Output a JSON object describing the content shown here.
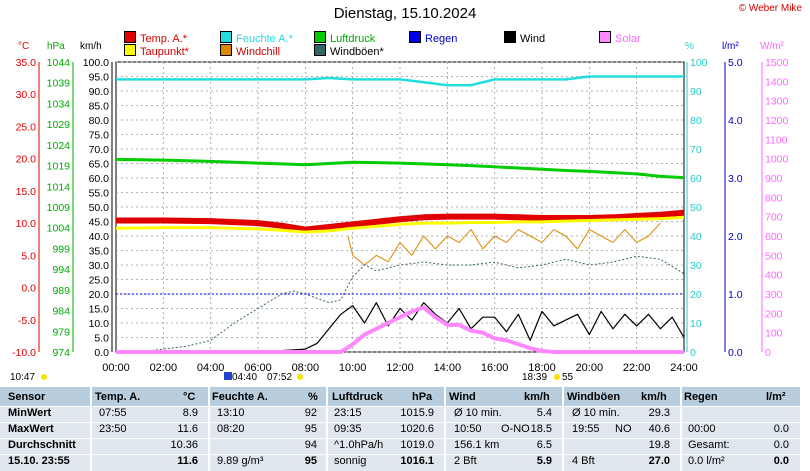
{
  "title": "Dienstag, 15.10.2024",
  "credit": "© Weber Mike",
  "legend": [
    {
      "label": "Temp. A.*",
      "color": "#e00000",
      "text_color": "#e00000"
    },
    {
      "label": "Feuchte A.*",
      "color": "#22dddd",
      "text_color": "#22dddd"
    },
    {
      "label": "Luftdruck",
      "color": "#00cc00",
      "text_color": "#00aa00"
    },
    {
      "label": "Regen",
      "color": "#0000ee",
      "text_color": "#0000cc"
    },
    {
      "label": "Wind",
      "color": "#000000",
      "text_color": "#000000"
    },
    {
      "label": "Solar",
      "color": "#ff88ff",
      "text_color": "#ff66ff"
    },
    {
      "label": "Taupunkt*",
      "color": "#ffff00",
      "text_color": "#cc0000"
    },
    {
      "label": "Windchill",
      "color": "#dd8800",
      "text_color": "#cc0000"
    },
    {
      "label": "Windböen*",
      "color": "#336666",
      "text_color": "#000000"
    }
  ],
  "axis_units": {
    "temp": "°C",
    "hpa": "hPa",
    "kmh": "km/h",
    "pct": "%",
    "rain": "l/m²",
    "solar": "W/m²"
  },
  "chart_data": {
    "type": "line",
    "x_ticks": [
      "00:00",
      "02:00",
      "04:00",
      "06:00",
      "08:00",
      "10:00",
      "12:00",
      "14:00",
      "16:00",
      "18:00",
      "20:00",
      "22:00",
      "24:00"
    ],
    "axes": {
      "temp": {
        "range": [
          -10,
          35
        ],
        "ticks": [
          "35.0",
          "30.0",
          "25.0",
          "20.0",
          "15.0",
          "10.0",
          "5.0",
          "0.0",
          "-5.0",
          "-10.0"
        ]
      },
      "pressure": {
        "range": [
          974,
          1044
        ],
        "ticks": [
          "1044",
          "1039",
          "1034",
          "1029",
          "1024",
          "1019",
          "1014",
          "1009",
          "1004",
          "999",
          "994",
          "989",
          "984",
          "979",
          "974"
        ]
      },
      "wind": {
        "range": [
          0,
          100
        ],
        "ticks": [
          "100.0",
          "95.0",
          "90.0",
          "85.0",
          "80.0",
          "75.0",
          "70.0",
          "65.0",
          "60.0",
          "55.0",
          "50.0",
          "45.0",
          "40.0",
          "35.0",
          "30.0",
          "25.0",
          "20.0",
          "15.0",
          "10.0",
          "5.0",
          "0.0"
        ]
      },
      "humidity": {
        "range": [
          0,
          100
        ],
        "ticks": [
          "100",
          "90",
          "80",
          "70",
          "60",
          "50",
          "40",
          "30",
          "20",
          "10",
          "0"
        ]
      },
      "rain": {
        "range": [
          0,
          5
        ],
        "ticks": [
          "5.0",
          "4.0",
          "3.0",
          "2.0",
          "1.0",
          "0.0"
        ]
      },
      "solar": {
        "range": [
          0,
          1500
        ],
        "ticks": [
          "1500",
          "1400",
          "1300",
          "1200",
          "1100",
          "1000",
          "900",
          "800",
          "700",
          "600",
          "500",
          "400",
          "300",
          "200",
          "100",
          "0"
        ]
      }
    },
    "series": [
      {
        "name": "Feuchte A.",
        "axis": "humidity",
        "color": "#22dddd",
        "x": [
          0,
          2,
          4,
          6,
          7,
          8,
          9,
          10,
          11,
          12,
          13,
          14,
          15,
          16,
          17,
          18,
          19,
          20,
          21,
          22,
          23,
          24
        ],
        "y": [
          94,
          94,
          94,
          94,
          94,
          94,
          94.5,
          94,
          94,
          94,
          93,
          92,
          92,
          94,
          94,
          94,
          94,
          95,
          95,
          95,
          95,
          95
        ]
      },
      {
        "name": "Luftdruck",
        "axis": "pressure",
        "color": "#00cc00",
        "x": [
          0,
          2,
          4,
          6,
          7,
          8,
          9,
          10,
          11,
          12,
          13,
          14,
          15,
          16,
          17,
          18,
          19,
          20,
          21,
          22,
          23,
          24
        ],
        "y": [
          1020.5,
          1020.3,
          1020,
          1019.6,
          1019.4,
          1019.2,
          1019.5,
          1019.8,
          1019.7,
          1019.6,
          1019.4,
          1019.2,
          1019,
          1018.7,
          1018.4,
          1018.1,
          1017.8,
          1017.6,
          1017.3,
          1017.0,
          1016.4,
          1016.1
        ]
      },
      {
        "name": "Temp. A.",
        "axis": "temp",
        "color": "#e00000",
        "x": [
          0,
          2,
          4,
          6,
          7,
          8,
          9,
          10,
          11,
          12,
          13,
          14,
          15,
          16,
          17,
          18,
          19,
          20,
          21,
          22,
          23,
          24
        ],
        "y": [
          10.4,
          10.4,
          10.3,
          10.0,
          9.6,
          9.0,
          9.4,
          9.8,
          10.2,
          10.6,
          10.9,
          11.0,
          11.0,
          11.0,
          10.9,
          10.8,
          10.8,
          10.8,
          10.9,
          11.1,
          11.3,
          11.6
        ]
      },
      {
        "name": "Taupunkt",
        "axis": "temp",
        "color": "#ffff00",
        "x": [
          0,
          2,
          4,
          6,
          7,
          8,
          9,
          10,
          11,
          12,
          13,
          14,
          15,
          16,
          17,
          18,
          19,
          20,
          21,
          22,
          23,
          24
        ],
        "y": [
          9.2,
          9.3,
          9.3,
          9.1,
          8.9,
          8.6,
          8.8,
          9.2,
          9.5,
          9.8,
          10.0,
          10.0,
          10.1,
          10.1,
          10.2,
          10.2,
          10.3,
          10.4,
          10.5,
          10.6,
          10.7,
          10.9
        ]
      },
      {
        "name": "Windchill",
        "axis": "temp",
        "color": "#dd8800",
        "x": [
          9.8,
          10,
          10.5,
          11,
          11.5,
          12,
          12.5,
          13,
          13.5,
          14,
          14.5,
          15,
          15.5,
          16,
          16.5,
          17,
          17.5,
          18,
          18.5,
          19,
          19.5,
          20,
          20.5,
          21,
          21.5,
          22,
          22.5,
          23
        ],
        "y": [
          8,
          5,
          3.5,
          5,
          4,
          7,
          5,
          8,
          6,
          8,
          7,
          9,
          6,
          8,
          7,
          9,
          8,
          7,
          9,
          8,
          6,
          9,
          8,
          7,
          9,
          7,
          8,
          10
        ]
      },
      {
        "name": "Windböen",
        "axis": "wind",
        "color": "#336666",
        "x": [
          0,
          1,
          2,
          3,
          4,
          5,
          6,
          7,
          7.5,
          8,
          9,
          9.5,
          10,
          10.5,
          11,
          12,
          13,
          14,
          15,
          16,
          17,
          18,
          19,
          20,
          21,
          22,
          23,
          24
        ],
        "y": [
          0,
          0,
          1,
          2,
          4,
          10,
          15,
          20,
          21,
          20,
          17,
          18,
          26,
          30,
          28,
          30,
          31,
          30,
          30,
          31,
          29,
          30,
          32,
          30,
          31,
          33,
          32,
          27
        ]
      },
      {
        "name": "Wind",
        "axis": "wind",
        "color": "#000000",
        "x": [
          0,
          1,
          2,
          3,
          4,
          5,
          6,
          7,
          8,
          8.5,
          9,
          9.5,
          10,
          10.5,
          11,
          11.5,
          12,
          12.5,
          13,
          13.5,
          14,
          14.5,
          15,
          15.5,
          16,
          16.5,
          17,
          17.5,
          18,
          18.5,
          19,
          19.5,
          20,
          20.5,
          21,
          21.5,
          22,
          22.5,
          23,
          23.5,
          24
        ],
        "y": [
          0,
          0,
          0,
          0,
          0,
          0,
          0,
          0.5,
          1,
          3,
          8,
          13,
          16,
          10,
          17,
          9,
          15,
          11,
          17,
          13,
          10,
          15,
          8,
          12,
          12,
          7,
          13,
          4,
          14,
          9,
          11,
          13,
          6,
          14,
          8,
          13,
          9,
          13,
          8,
          12,
          5
        ]
      },
      {
        "name": "Solar",
        "axis": "solar",
        "color": "#ff88ff",
        "x": [
          0,
          9.5,
          10,
          10.5,
          11,
          11.5,
          12,
          12.5,
          13,
          13.5,
          14,
          14.5,
          15,
          15.5,
          16,
          16.5,
          17,
          17.5,
          18,
          18.5,
          24
        ],
        "y": [
          0,
          0,
          40,
          90,
          120,
          150,
          180,
          210,
          230,
          180,
          140,
          140,
          110,
          100,
          70,
          60,
          40,
          20,
          5,
          0,
          0
        ]
      },
      {
        "name": "Regen",
        "axis": "rain",
        "color": "#0000ee",
        "x": [
          0,
          24
        ],
        "y": [
          1,
          1
        ]
      }
    ],
    "markers": [
      {
        "label": "04:40"
      },
      {
        "label": "07:52"
      },
      {
        "label": "18:39"
      },
      {
        "label": "55"
      },
      {
        "label": "10:47"
      }
    ]
  },
  "table": {
    "headers": {
      "sensor": "Sensor",
      "temp": "Temp. A.",
      "temp_unit": "°C",
      "hum": "Feuchte A.",
      "hum_unit": "%",
      "press": "Luftdruck",
      "press_unit": "hPa",
      "wind": "Wind",
      "wind_unit": "km/h",
      "gust": "Windböen",
      "gust_unit": "km/h",
      "rain": "Regen",
      "rain_unit": "l/m²"
    },
    "rows": [
      {
        "label": "MinWert",
        "temp_time": "07:55",
        "temp_val": "8.9",
        "hum_time": "13:10",
        "hum_val": "92",
        "press_time": "23:15",
        "press_val": "1015.9",
        "wind_a": "Ø 10 min.",
        "wind_b": "",
        "wind_val": "5.4",
        "gust_a": "Ø 10 min.",
        "gust_val": "29.3",
        "rain_a": "",
        "rain_val": ""
      },
      {
        "label": "MaxWert",
        "temp_time": "23:50",
        "temp_val": "11.6",
        "hum_time": "08:20",
        "hum_val": "95",
        "press_time": "09:35",
        "press_val": "1020.6",
        "wind_a": "10:50",
        "wind_b": "O-NO",
        "wind_val": "18.5",
        "gust_a": "19:55",
        "gust_b": "NO",
        "gust_val": "40.6",
        "rain_a": "00:00",
        "rain_val": "0.0"
      },
      {
        "label": "Durchschnitt",
        "temp_time": "",
        "temp_val": "10.36",
        "hum_time": "",
        "hum_val": "94",
        "press_time": "^1.0hPa/h",
        "press_val": "1019.0",
        "wind_a": "156.1 km",
        "wind_b": "",
        "wind_val": "6.5",
        "gust_a": "",
        "gust_val": "19.8",
        "rain_a": "Gesamt:",
        "rain_val": "0.0"
      },
      {
        "label": "15.10. 23:55",
        "temp_time": "",
        "temp_val": "11.6",
        "hum_time": "9.89 g/m³",
        "hum_val": "95",
        "press_time": "sonnig",
        "press_val": "1016.1",
        "wind_a": "2 Bft",
        "wind_b": "",
        "wind_val": "5.9",
        "gust_a": "4 Bft",
        "gust_val": "27.0",
        "rain_a": "0.0 l/m²",
        "rain_val": "0.0"
      }
    ]
  }
}
